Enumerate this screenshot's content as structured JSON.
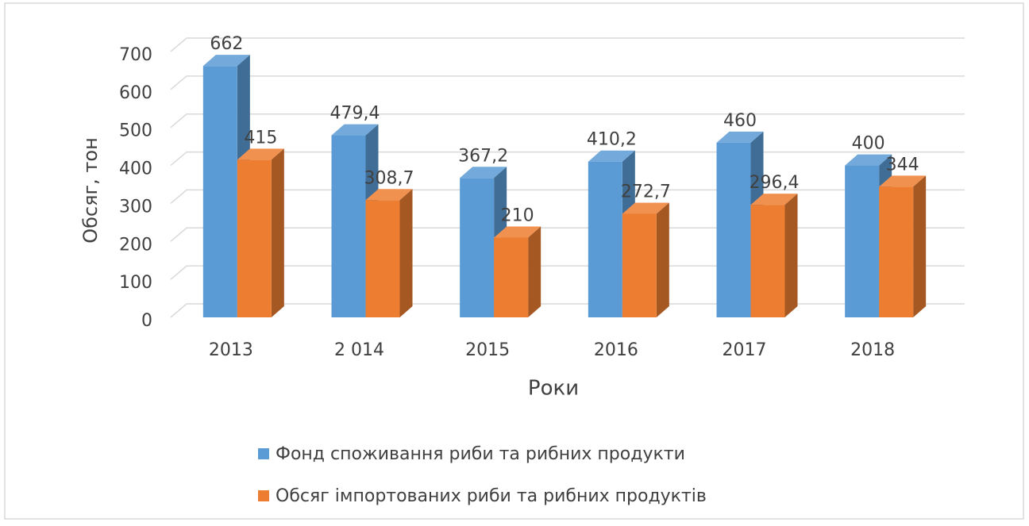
{
  "chart_data": {
    "type": "bar3d",
    "y_axis_label": "Обсяг, тон",
    "x_axis_label": "Роки",
    "categories": [
      "2013",
      "2 014",
      "2015",
      "2016",
      "2017",
      "2018"
    ],
    "series": [
      {
        "name": "Фонд споживання риби та рибних продукти",
        "color": "#5b9bd5",
        "values": [
          662,
          479.4,
          367.2,
          410.2,
          460,
          400
        ],
        "value_labels": [
          "662",
          "479,4",
          "367,2",
          "410,2",
          "460",
          "400"
        ]
      },
      {
        "name": "Обсяг імпортованих риби та рибних продуктів",
        "color": "#ed7d31",
        "values": [
          415,
          308.7,
          210,
          272.7,
          296.4,
          344
        ],
        "value_labels": [
          "415",
          "308,7",
          "210",
          "272,7",
          "296,4",
          "344"
        ]
      }
    ],
    "ylim": [
      0,
      700
    ],
    "yticks": [
      0,
      100,
      200,
      300,
      400,
      500,
      600,
      700
    ],
    "grid": true,
    "legend": "bottom"
  }
}
